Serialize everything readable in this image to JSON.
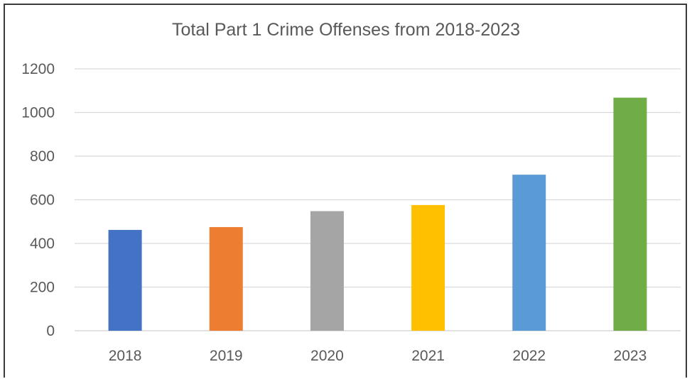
{
  "chart_data": {
    "type": "bar",
    "title": "Total Part 1 Crime Offenses from 2018-2023",
    "xlabel": "",
    "ylabel": "",
    "categories": [
      "2018",
      "2019",
      "2020",
      "2021",
      "2022",
      "2023"
    ],
    "values": [
      462,
      475,
      548,
      576,
      715,
      1068
    ],
    "colors": [
      "#4472C4",
      "#ED7D31",
      "#A5A5A5",
      "#FFC000",
      "#5B9BD5",
      "#70AD47"
    ],
    "ylim": [
      0,
      1200
    ],
    "yticks": [
      "0",
      "200",
      "400",
      "600",
      "800",
      "1000",
      "1200"
    ],
    "grid": true,
    "legend": "none"
  }
}
